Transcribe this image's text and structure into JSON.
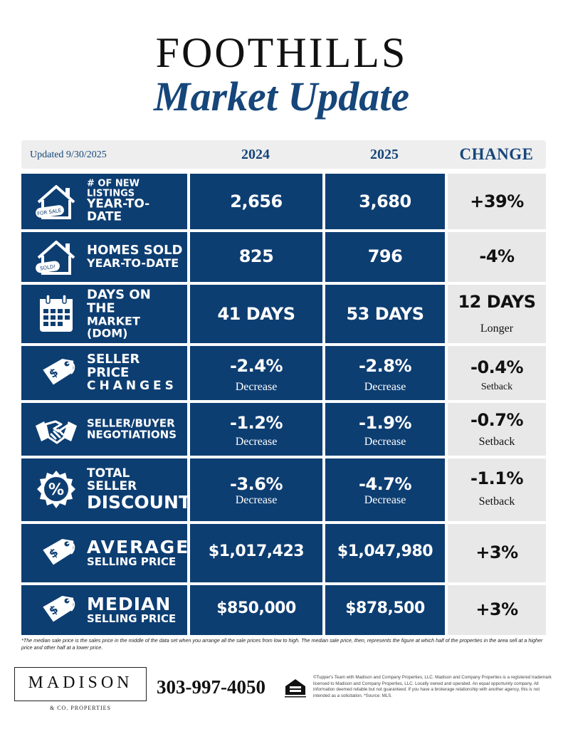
{
  "header": {
    "title_line1": "FOOTHILLS",
    "title_line2": "Market Update"
  },
  "table_header": {
    "updated": "Updated 9/30/2025",
    "col_2024": "2024",
    "col_2025": "2025",
    "col_change": "CHANGE"
  },
  "rows": [
    {
      "icon": "house-for-sale-icon",
      "icon_tag": "FOR SALE",
      "label_line1": "# OF NEW LISTINGS",
      "label_line2": "YEAR-TO-DATE",
      "v2024": "2,656",
      "v2024_sub": "",
      "v2025": "3,680",
      "v2025_sub": "",
      "change": "+39%",
      "change_sub": ""
    },
    {
      "icon": "house-sold-icon",
      "icon_tag": "SOLD!",
      "label_line1": "HOMES SOLD",
      "label_line2": "YEAR-TO-DATE",
      "v2024": "825",
      "v2024_sub": "",
      "v2025": "796",
      "v2025_sub": "",
      "change": "-4%",
      "change_sub": ""
    },
    {
      "icon": "calendar-icon",
      "label_line1": "DAYS ON THE",
      "label_line2": "MARKET (DOM)",
      "v2024": "41 DAYS",
      "v2024_sub": "",
      "v2025": "53 DAYS",
      "v2025_sub": "",
      "change": "12 DAYS",
      "change_sub": "Longer"
    },
    {
      "icon": "price-tag-icon",
      "label_line1": "SELLER PRICE",
      "label_line2": "CHANGES",
      "v2024": "-2.4%",
      "v2024_sub": "Decrease",
      "v2025": "-2.8%",
      "v2025_sub": "Decrease",
      "change": "-0.4%",
      "change_sub": "Setback"
    },
    {
      "icon": "handshake-icon",
      "label_line1": "SELLER/BUYER",
      "label_line2": "NEGOTIATIONS",
      "v2024": "-1.2%",
      "v2024_sub": "Decrease",
      "v2025": "-1.9%",
      "v2025_sub": "Decrease",
      "change": "-0.7%",
      "change_sub": "Setback"
    },
    {
      "icon": "percent-badge-icon",
      "label_line1": "TOTAL SELLER",
      "label_line2": "DISCOUNT",
      "v2024": "-3.6%",
      "v2024_sub": "Decrease",
      "v2025": "-4.7%",
      "v2025_sub": "Decrease",
      "change": "-1.1%",
      "change_sub": "Setback"
    },
    {
      "icon": "price-tag-icon",
      "label_line1": "AVERAGE",
      "label_line2": "SELLING PRICE",
      "v2024": "$1,017,423",
      "v2024_sub": "",
      "v2025": "$1,047,980",
      "v2025_sub": "",
      "change": "+3%",
      "change_sub": ""
    },
    {
      "icon": "price-tag-icon",
      "label_line1": "MEDIAN",
      "label_line2": "SELLING PRICE",
      "v2024": "$850,000",
      "v2024_sub": "",
      "v2025": "$878,500",
      "v2025_sub": "",
      "change": "+3%",
      "change_sub": ""
    }
  ],
  "footnote": "*The median sale price is the sales price in the middle of the data set when you arrange all the sale prices from low to high. The median sale price, then, represents the figure at which half of the properties in the area sell at a higher price and other half at a lower price.",
  "footer": {
    "logo_name": "MADISON",
    "logo_sub": "& CO. PROPERTIES",
    "phone": "303-997-4050",
    "eho_icon": "equal-housing-opportunity-icon",
    "disclaimer": "©Tupper's Team with Madison and Company Properties, LLC. Madison and Company Properties is a registered trademark licensed to Madison and Company Properties, LLC. Locally owned and operated. An equal opportunity company. All information deemed reliable but not guaranteed. If you have a brokerage relationship with another agency, this is not intended as a solicitation. *Source: MLS."
  },
  "colors": {
    "navy": "#0d3e72",
    "title_blue": "#16467a",
    "change_bg": "#e8e8e8"
  }
}
